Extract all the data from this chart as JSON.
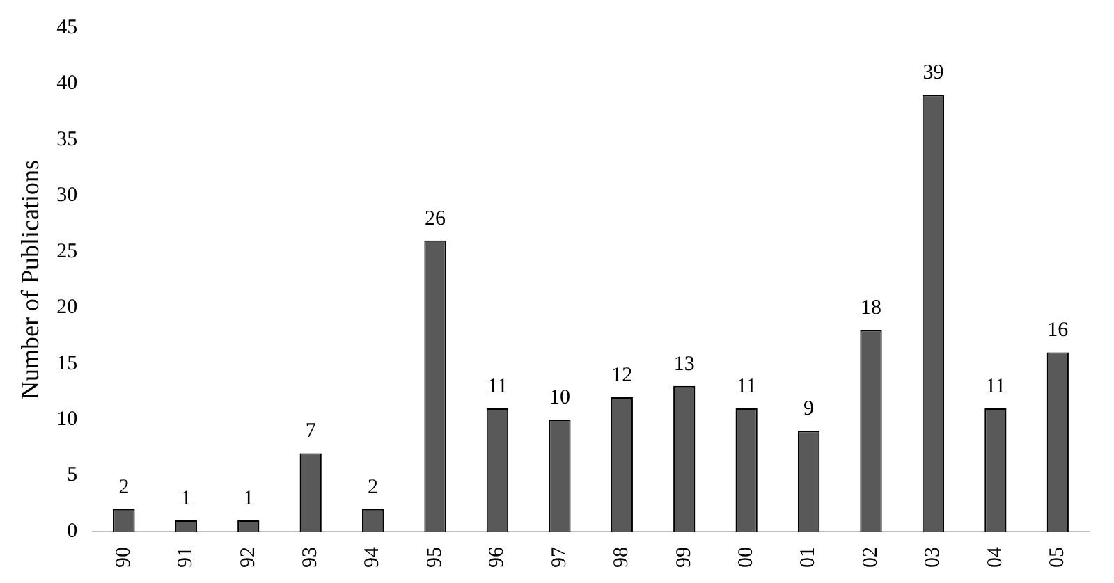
{
  "chart_data": {
    "type": "bar",
    "ylabel": "Number of Publications",
    "categories": [
      "90",
      "91",
      "92",
      "93",
      "94",
      "95",
      "96",
      "97",
      "98",
      "99",
      "00",
      "01",
      "02",
      "03",
      "04",
      "05"
    ],
    "values": [
      2,
      1,
      1,
      7,
      2,
      26,
      11,
      10,
      12,
      13,
      11,
      9,
      18,
      39,
      11,
      16
    ],
    "color": "#595959",
    "ylim": [
      0,
      45
    ],
    "yticks": [
      0,
      5,
      10,
      15,
      20,
      25,
      30,
      35,
      40,
      45
    ],
    "grid": false,
    "data_labels": true,
    "legend": false
  }
}
